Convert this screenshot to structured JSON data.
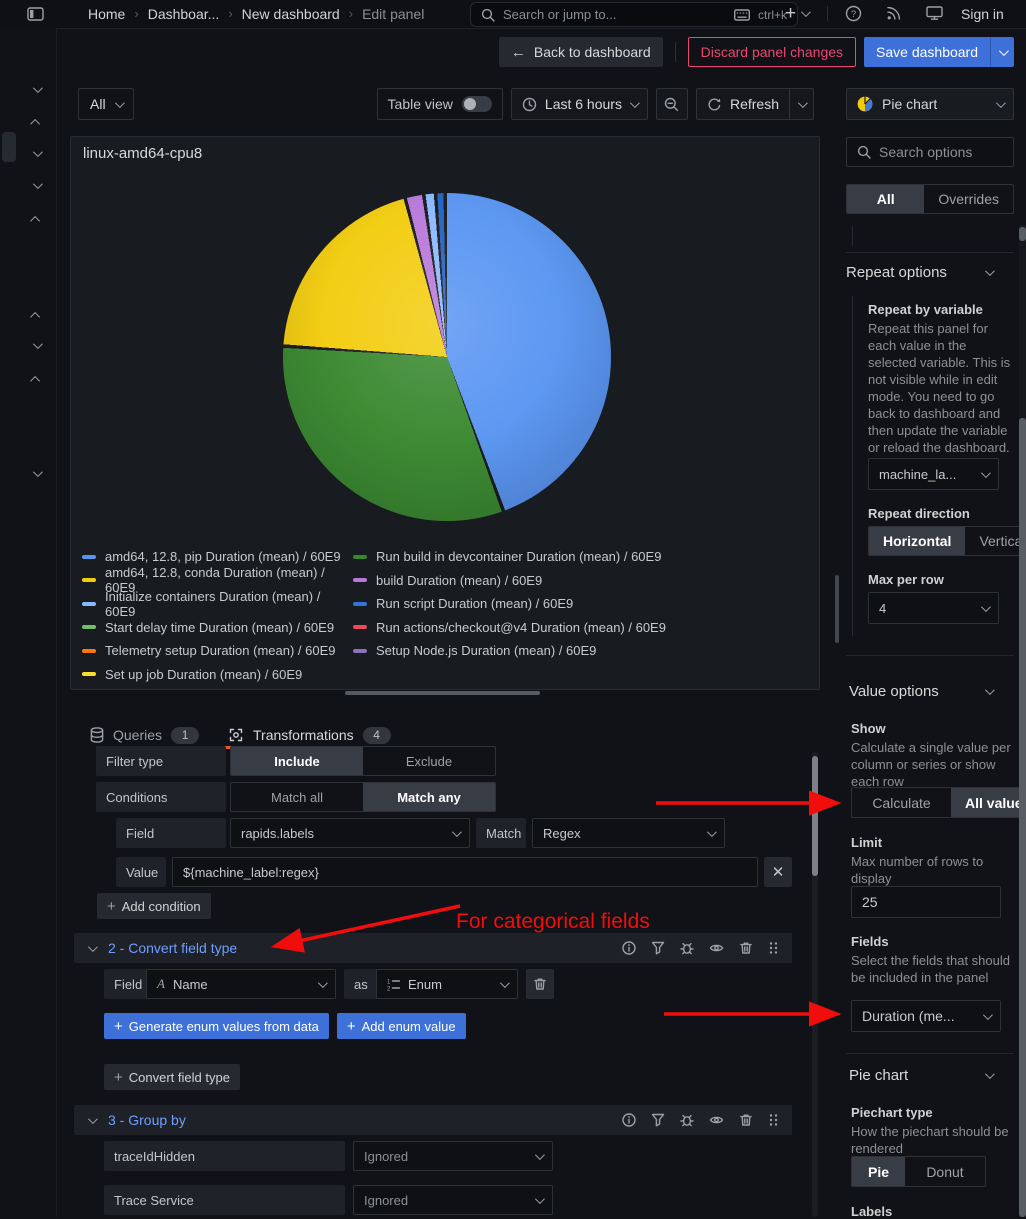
{
  "topnav": {
    "breadcrumbs": [
      "Home",
      "Dashboar...",
      "New dashboard",
      "Edit panel"
    ],
    "search_placeholder": "Search or jump to...",
    "search_shortcut": "ctrl+k",
    "sign_in_label": "Sign in"
  },
  "action_bar": {
    "back_label": "Back to dashboard",
    "discard_label": "Discard panel changes",
    "save_label": "Save dashboard"
  },
  "panel_toolbar": {
    "scope_label": "All",
    "table_view_label": "Table view",
    "time_range_label": "Last 6 hours",
    "refresh_label": "Refresh"
  },
  "panel": {
    "title": "linux-amd64-cpu8"
  },
  "chart_data": {
    "type": "pie",
    "title": "linux-amd64-cpu8",
    "legend_position": "bottom",
    "series": [
      {
        "label": "amd64, 12.8, pip Duration (mean) / 60E9",
        "color": "#5794F2",
        "value": 44.5
      },
      {
        "label": "amd64, 12.8, conda Duration (mean) / 60E9",
        "color": "#F2CC0C",
        "value": 19.6
      },
      {
        "label": "Initialize containers Duration (mean) / 60E9",
        "color": "#8AB8FF",
        "value": 0.8
      },
      {
        "label": "Start delay time Duration (mean) / 60E9",
        "color": "#73BF69",
        "value": 0.2
      },
      {
        "label": "Telemetry setup Duration (mean) / 60E9",
        "color": "#FF780A",
        "value": 0.2
      },
      {
        "label": "Set up job Duration (mean) / 60E9",
        "color": "#FADE2A",
        "value": 0.2
      },
      {
        "label": "Run build in devcontainer Duration (mean) / 60E9",
        "color": "#37872D",
        "value": 31.5
      },
      {
        "label": "build Duration (mean) / 60E9",
        "color": "#B877D9",
        "value": 1.5
      },
      {
        "label": "Run script Duration (mean) / 60E9",
        "color": "#3274D9",
        "value": 0.6
      },
      {
        "label": "Run actions/checkout@v4 Duration (mean) / 60E9",
        "color": "#F2495C",
        "value": 0.2
      },
      {
        "label": "Setup Node.js Duration (mean) / 60E9",
        "color": "#8F6FBF",
        "value": 0.2
      }
    ],
    "legend_rows_per_column": 6,
    "pie_slices": [
      {
        "name": "amd64, 12.8, pip",
        "color": "#5794F2",
        "pct": 44.5
      },
      {
        "name": "Run build in devcontainer",
        "color": "#37872D",
        "pct": 31.5
      },
      {
        "name": "amd64, 12.8, conda",
        "color": "#F2CC0C",
        "pct": 19.6
      },
      {
        "name": "build",
        "color": "#B877D9",
        "pct": 1.5
      },
      {
        "name": "Initialize containers",
        "color": "#8AB8FF",
        "pct": 0.8
      },
      {
        "name": "Run script",
        "color": "#1F60C4",
        "pct": 0.6
      }
    ]
  },
  "tabs": {
    "queries_label": "Queries",
    "queries_count": "1",
    "transformations_label": "Transformations",
    "transformations_count": "4"
  },
  "transformations": {
    "filter": {
      "filter_type_label": "Filter type",
      "include_label": "Include",
      "exclude_label": "Exclude",
      "conditions_label": "Conditions",
      "match_all_label": "Match all",
      "match_any_label": "Match any",
      "field_label": "Field",
      "field_value": "rapids.labels",
      "match_label": "Match",
      "match_value": "Regex",
      "value_label": "Value",
      "value_input": "${machine_label:regex}",
      "add_condition_label": "Add condition"
    },
    "convert": {
      "title": "2 - Convert field type",
      "field_label": "Field",
      "field_value": "Name",
      "as_label": "as",
      "as_value": "Enum",
      "generate_label": "Generate enum values from data",
      "add_enum_label": "Add enum value",
      "add_convert_label": "Convert field type"
    },
    "groupby": {
      "title": "3 - Group by",
      "rows": [
        {
          "field": "traceIdHidden",
          "mode": "Ignored"
        },
        {
          "field": "Trace Service",
          "mode": "Ignored"
        }
      ]
    }
  },
  "options_panel": {
    "viz_picker_label": "Pie chart",
    "search_placeholder": "Search options",
    "all_tab": "All",
    "overrides_tab": "Overrides",
    "repeat": {
      "header": "Repeat options",
      "by_variable_label": "Repeat by variable",
      "by_variable_desc": "Repeat this panel for each value in the selected variable. This is not visible while in edit mode. You need to go back to dashboard and then update the variable or reload the dashboard.",
      "variable_value": "machine_la...",
      "direction_label": "Repeat direction",
      "direction_horizontal": "Horizontal",
      "direction_vertical": "Vertical",
      "max_per_row_label": "Max per row",
      "max_per_row_value": "4"
    },
    "value_options": {
      "header": "Value options",
      "show_label": "Show",
      "show_desc": "Calculate a single value per column or series or show each row",
      "show_calculate": "Calculate",
      "show_all_values": "All values",
      "limit_label": "Limit",
      "limit_desc": "Max number of rows to display",
      "limit_value": "25",
      "fields_label": "Fields",
      "fields_desc": "Select the fields that should be included in the panel",
      "fields_value": "Duration (me..."
    },
    "pie": {
      "header": "Pie chart",
      "type_label": "Piechart type",
      "type_desc": "How the piechart should be rendered",
      "type_pie": "Pie",
      "type_donut": "Donut",
      "labels_label": "Labels"
    }
  },
  "annotations": {
    "note": "For categorical fields"
  },
  "colors": {
    "primary_blue": "#3d71d9",
    "danger_pink": "#ef4472",
    "tab_active_orange": "#e8532f",
    "section_title_blue": "#6e9fff",
    "annotation_red": "#f20d0d",
    "gap_dark": "#141619"
  }
}
